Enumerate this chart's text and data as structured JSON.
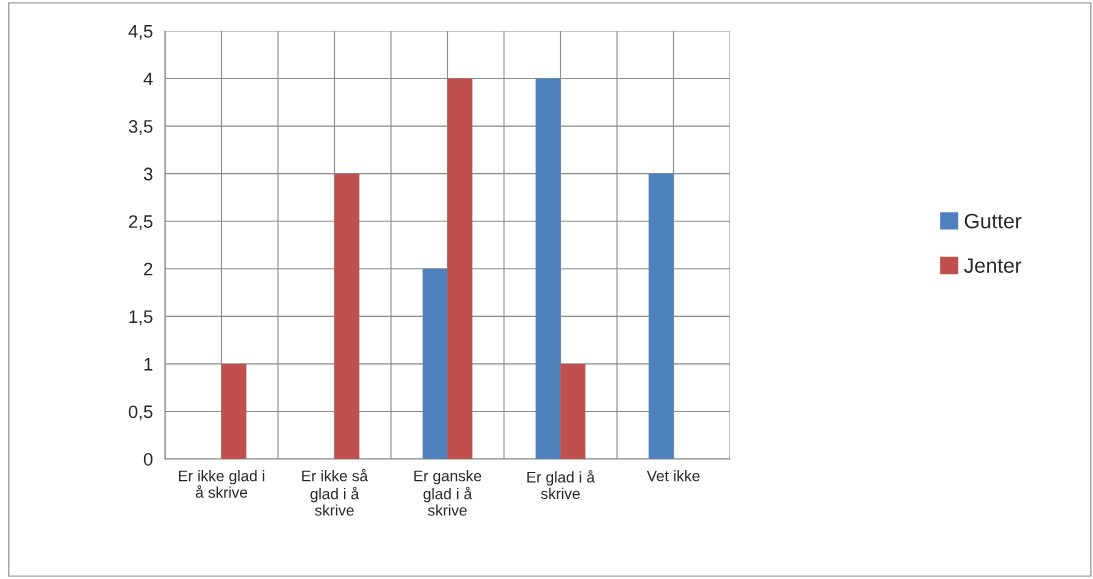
{
  "chart_data": {
    "type": "bar",
    "categories": [
      "Er ikke glad i\nå skrive",
      "Er ikke så\nglad i å\nskrive",
      "Er ganske\nglad i å\nskrive",
      "Er glad i å\nskrive",
      "Vet ikke"
    ],
    "series": [
      {
        "name": "Gutter",
        "color": "#4f81bd",
        "values": [
          0,
          0,
          2,
          4,
          3
        ]
      },
      {
        "name": "Jenter",
        "color": "#c0504d",
        "values": [
          1,
          3,
          4,
          1,
          0
        ]
      }
    ],
    "ylim": [
      0,
      4.5
    ],
    "yticks": [
      0,
      {
        "value": 0.5,
        "label": "0,5"
      },
      1,
      {
        "value": 1.5,
        "label": "1,5"
      },
      2,
      {
        "value": 2.5,
        "label": "2,5"
      },
      3,
      {
        "value": 3.5,
        "label": "3,5"
      },
      4,
      {
        "value": 4.5,
        "label": "4,5"
      }
    ],
    "grid": true,
    "legend": "right"
  }
}
